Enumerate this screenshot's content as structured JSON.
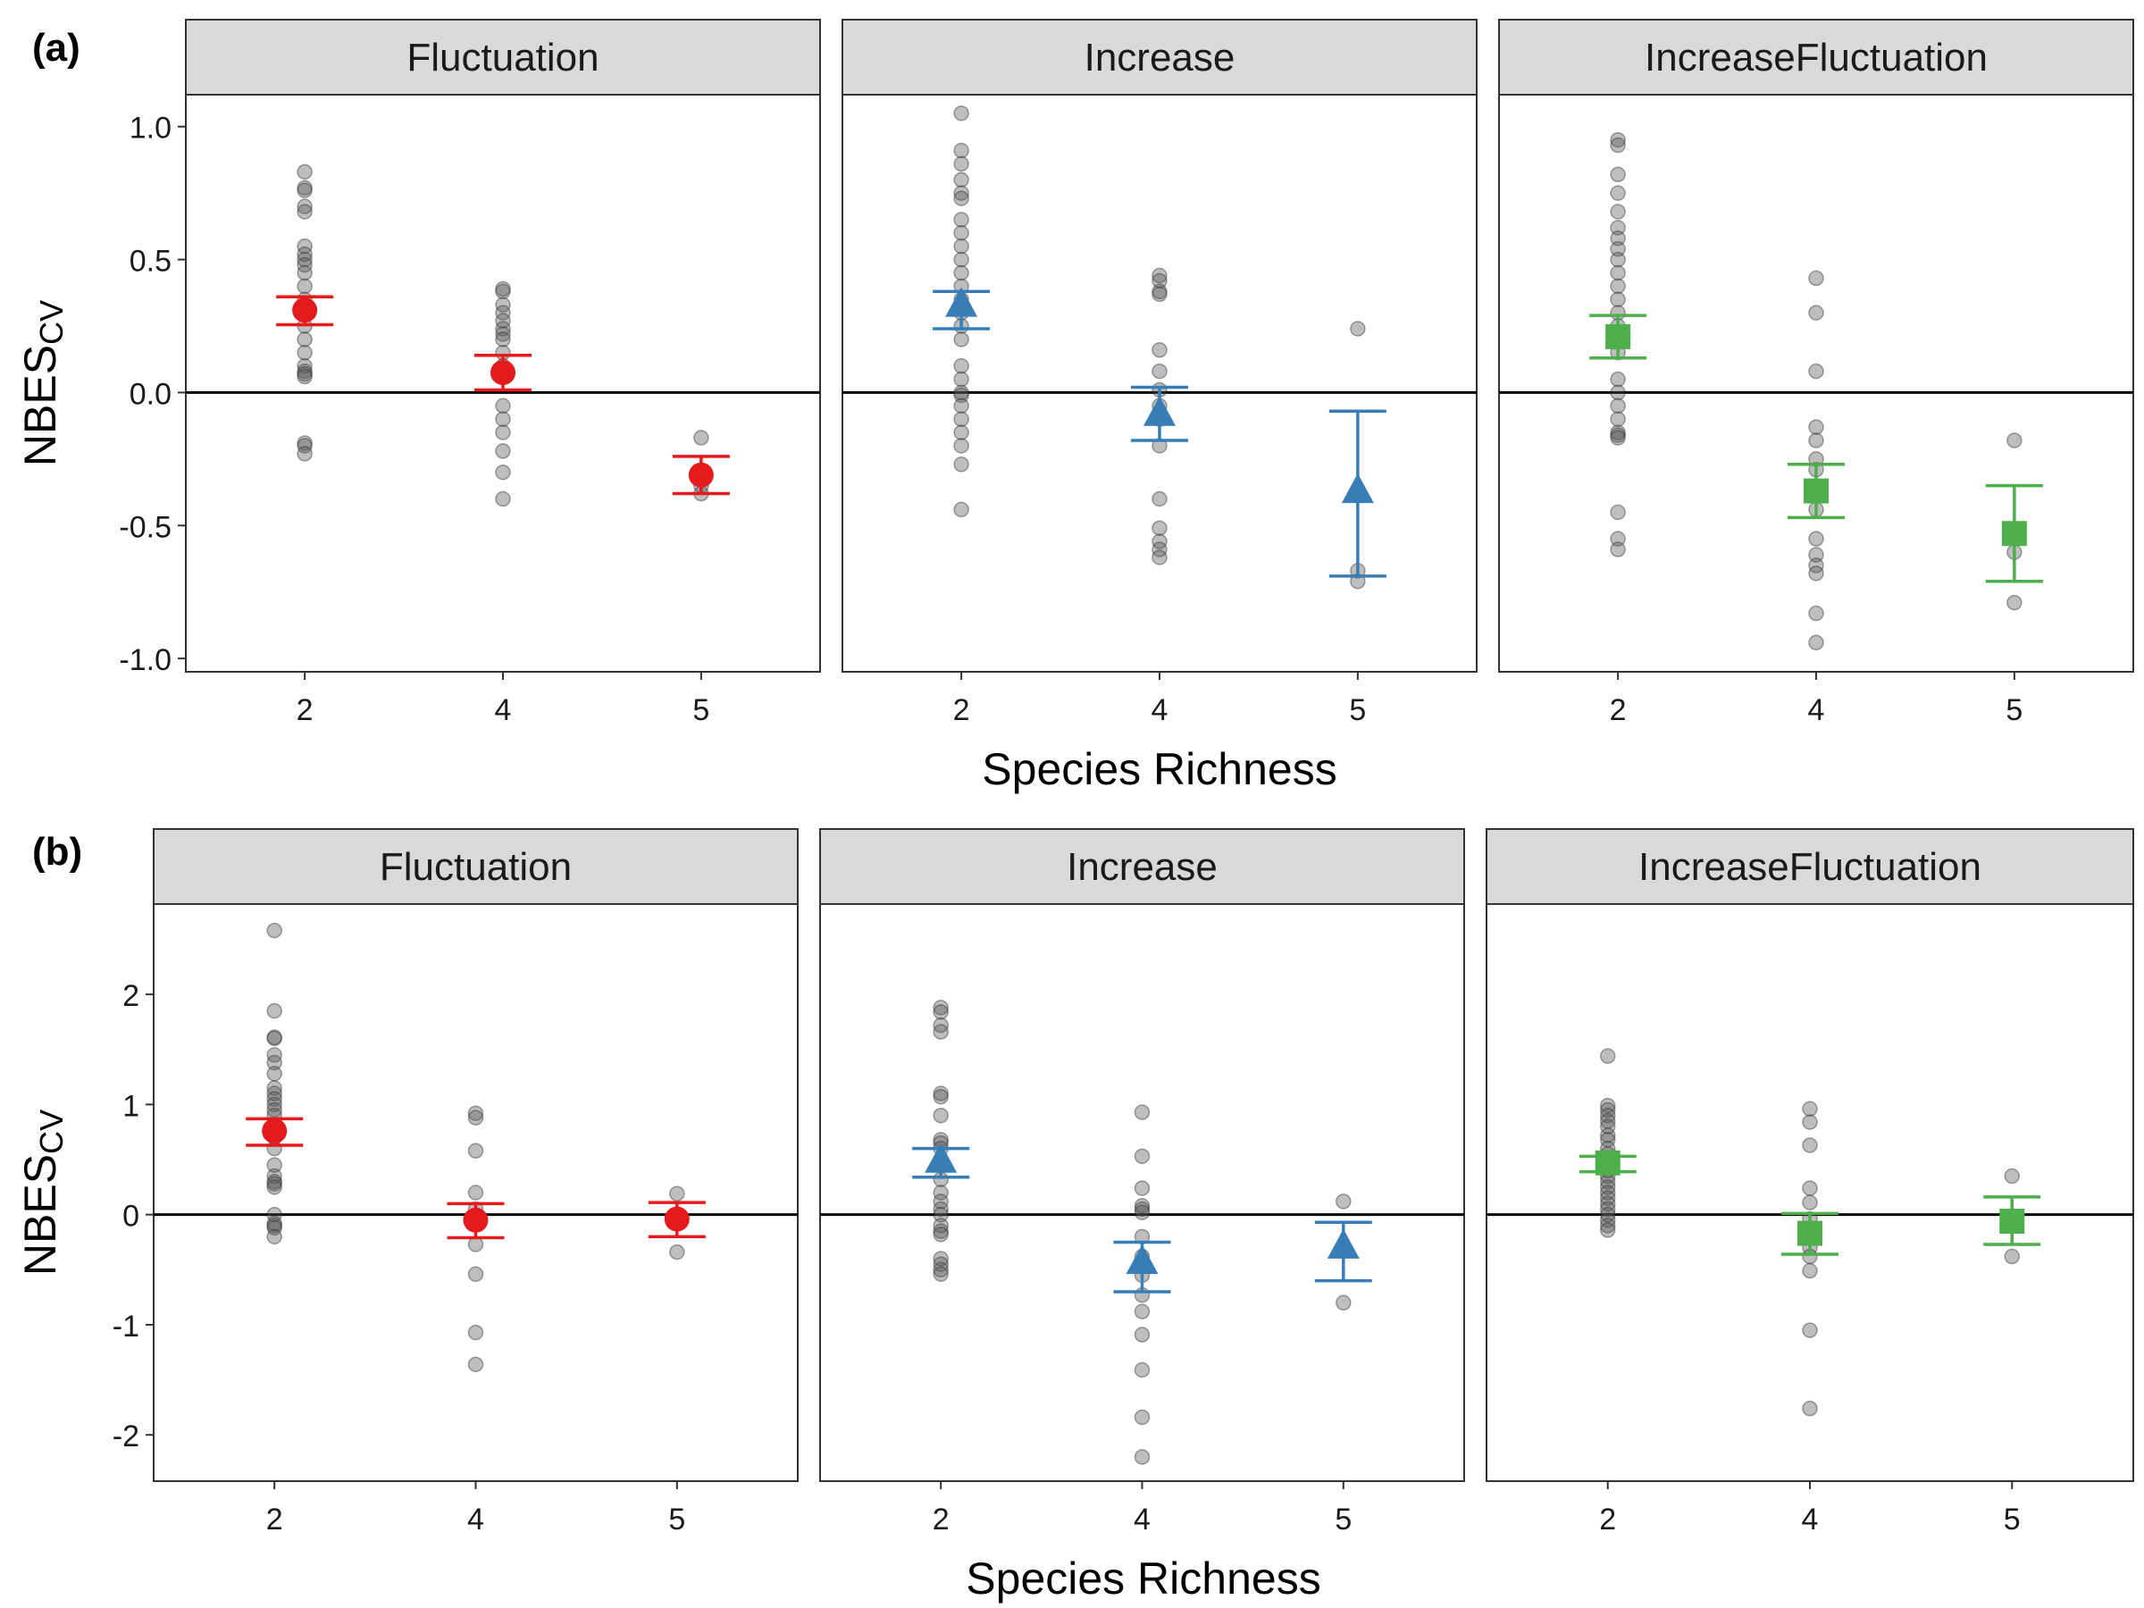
{
  "figure": {
    "x_axis_label": "Species Richness",
    "y_axis_label_main": "NBES",
    "y_axis_label_sub": "CV"
  },
  "colors": {
    "Fluctuation": "#e41a1c",
    "Increase": "#377eb8",
    "IncreaseFluctuation": "#4daf4a",
    "points": "#555555",
    "strip": "#d9d9d9"
  },
  "chart_data": [
    {
      "type": "scatter",
      "panel_tag": "(a)",
      "xlabel": "Species Richness",
      "ylabel": "NBES CV",
      "categories": [
        "2",
        "4",
        "5"
      ],
      "ylim": [
        -1.05,
        1.12
      ],
      "yticks": [
        {
          "value": 1.0,
          "label": "1.0"
        },
        {
          "value": 0.5,
          "label": "0.5"
        },
        {
          "value": 0.0,
          "label": "0.0"
        },
        {
          "value": -0.5,
          "label": "-0.5"
        },
        {
          "value": -1.0,
          "label": "-1.0"
        }
      ],
      "reference_line": 0,
      "facets": [
        {
          "name": "Fluctuation",
          "marker": "circle",
          "points": [
            [
              0.83,
              0.77,
              0.76,
              0.7,
              0.68,
              0.55,
              0.52,
              0.5,
              0.48,
              0.45,
              0.4,
              0.35,
              0.3,
              0.25,
              0.2,
              0.15,
              0.1,
              0.08,
              0.07,
              0.06,
              -0.19,
              -0.2,
              -0.23
            ],
            [
              0.39,
              0.38,
              0.33,
              0.3,
              0.27,
              0.24,
              0.22,
              0.2,
              0.15,
              0.1,
              0.08,
              -0.05,
              -0.1,
              -0.15,
              -0.22,
              -0.3,
              -0.4
            ],
            [
              -0.17,
              -0.3,
              -0.35,
              -0.38
            ]
          ],
          "means": [
            0.31,
            0.075,
            -0.31
          ],
          "errors": [
            [
              0.255,
              0.36
            ],
            [
              0.01,
              0.14
            ],
            [
              -0.38,
              -0.24
            ]
          ]
        },
        {
          "name": "Increase",
          "marker": "triangle",
          "points": [
            [
              1.05,
              0.91,
              0.86,
              0.8,
              0.75,
              0.73,
              0.65,
              0.6,
              0.55,
              0.5,
              0.45,
              0.4,
              0.35,
              0.3,
              0.25,
              0.2,
              0.1,
              0.05,
              0.0,
              -0.01,
              -0.05,
              -0.1,
              -0.15,
              -0.2,
              -0.27,
              -0.44
            ],
            [
              0.44,
              0.42,
              0.38,
              0.37,
              0.16,
              0.08,
              0.01,
              -0.05,
              -0.1,
              -0.2,
              -0.4,
              -0.51,
              -0.56,
              -0.59,
              -0.62
            ],
            [
              0.24,
              -0.67,
              -0.71
            ]
          ],
          "means": [
            0.33,
            -0.08,
            -0.37
          ],
          "errors": [
            [
              0.24,
              0.38
            ],
            [
              -0.18,
              0.02
            ],
            [
              -0.69,
              -0.07
            ]
          ]
        },
        {
          "name": "IncreaseFluctuation",
          "marker": "square",
          "points": [
            [
              0.95,
              0.93,
              0.82,
              0.75,
              0.68,
              0.62,
              0.58,
              0.54,
              0.5,
              0.45,
              0.4,
              0.35,
              0.3,
              0.25,
              0.2,
              0.15,
              0.05,
              0.0,
              -0.05,
              -0.1,
              -0.15,
              -0.16,
              -0.17,
              -0.45,
              -0.55,
              -0.59
            ],
            [
              0.43,
              0.3,
              0.08,
              -0.13,
              -0.18,
              -0.25,
              -0.29,
              -0.44,
              -0.55,
              -0.61,
              -0.65,
              -0.68,
              -0.83,
              -0.94
            ],
            [
              -0.18,
              -0.6,
              -0.79
            ]
          ],
          "means": [
            0.21,
            -0.37,
            -0.53
          ],
          "errors": [
            [
              0.13,
              0.29
            ],
            [
              -0.47,
              -0.27
            ],
            [
              -0.71,
              -0.35
            ]
          ]
        }
      ]
    },
    {
      "type": "scatter",
      "panel_tag": "(b)",
      "xlabel": "Species Richness",
      "ylabel": "NBES CV",
      "categories": [
        "2",
        "4",
        "5"
      ],
      "ylim": [
        -2.42,
        2.82
      ],
      "yticks": [
        {
          "value": 2,
          "label": "2"
        },
        {
          "value": 1,
          "label": "1"
        },
        {
          "value": 0,
          "label": "0"
        },
        {
          "value": -1,
          "label": "-1"
        },
        {
          "value": -2,
          "label": "-2"
        }
      ],
      "reference_line": 0,
      "facets": [
        {
          "name": "Fluctuation",
          "marker": "circle",
          "points": [
            [
              2.58,
              1.85,
              1.61,
              1.6,
              1.45,
              1.38,
              1.28,
              1.15,
              1.1,
              1.05,
              1.0,
              0.95,
              0.9,
              0.8,
              0.7,
              0.6,
              0.45,
              0.35,
              0.3,
              0.28,
              0.25,
              0.0,
              -0.08,
              -0.1,
              -0.12,
              -0.2
            ],
            [
              0.92,
              0.88,
              0.58,
              0.2,
              0.05,
              -0.05,
              -0.27,
              -0.54,
              -1.07,
              -1.36
            ],
            [
              0.19,
              -0.34
            ]
          ],
          "means": [
            0.76,
            -0.05,
            -0.04
          ],
          "errors": [
            [
              0.63,
              0.87
            ],
            [
              -0.21,
              0.1
            ],
            [
              -0.2,
              0.11
            ]
          ]
        },
        {
          "name": "Increase",
          "marker": "triangle",
          "points": [
            [
              1.88,
              1.84,
              1.72,
              1.66,
              1.1,
              1.07,
              0.9,
              0.68,
              0.65,
              0.6,
              0.45,
              0.32,
              0.2,
              0.12,
              0.05,
              0.0,
              -0.1,
              -0.15,
              -0.18,
              -0.4,
              -0.45,
              -0.5,
              -0.54
            ],
            [
              0.93,
              0.53,
              0.24,
              0.08,
              0.05,
              0.02,
              -0.2,
              -0.38,
              -0.55,
              -0.73,
              -0.88,
              -1.09,
              -1.41,
              -1.84,
              -2.2
            ],
            [
              0.12,
              -0.8
            ]
          ],
          "means": [
            0.49,
            -0.43,
            -0.29
          ],
          "errors": [
            [
              0.34,
              0.6
            ],
            [
              -0.7,
              -0.25
            ],
            [
              -0.6,
              -0.07
            ]
          ]
        },
        {
          "name": "IncreaseFluctuation",
          "marker": "square",
          "points": [
            [
              1.44,
              0.99,
              0.95,
              0.9,
              0.85,
              0.8,
              0.72,
              0.68,
              0.6,
              0.55,
              0.5,
              0.45,
              0.4,
              0.35,
              0.3,
              0.25,
              0.2,
              0.15,
              0.1,
              0.05,
              0.0,
              -0.05,
              -0.1,
              -0.14
            ],
            [
              0.96,
              0.84,
              0.63,
              0.24,
              0.11,
              -0.04,
              -0.18,
              -0.3,
              -0.38,
              -0.51,
              -1.05,
              -1.76
            ],
            [
              0.35,
              -0.38
            ]
          ],
          "means": [
            0.47,
            -0.17,
            -0.06
          ],
          "errors": [
            [
              0.39,
              0.53
            ],
            [
              -0.36,
              0.01
            ],
            [
              -0.27,
              0.16
            ]
          ]
        }
      ]
    }
  ]
}
